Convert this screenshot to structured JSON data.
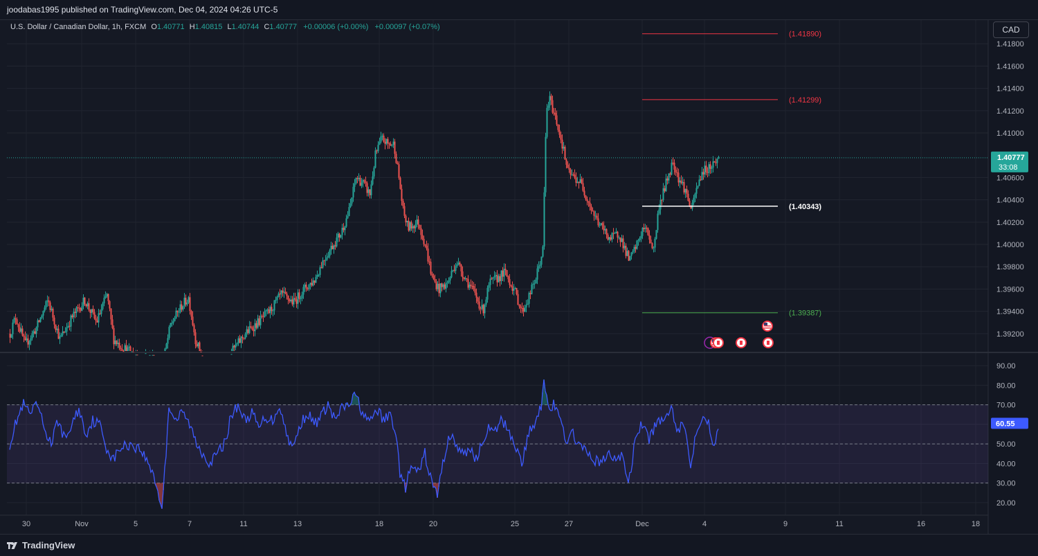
{
  "header": {
    "published": "joodabas1995 published on TradingView.com, Dec 04, 2024 04:26 UTC-5"
  },
  "legend": {
    "symbol": "U.S. Dollar / Canadian Dollar, 1h, FXCM",
    "o_label": "O",
    "o_value": "1.40771",
    "h_label": "H",
    "h_value": "1.40815",
    "l_label": "L",
    "l_value": "1.40744",
    "c_label": "C",
    "c_value": "1.40777",
    "change1": "+0.00006 (+0.00%)",
    "change2": "+0.00097 (+0.07%)"
  },
  "currency_button": "CAD",
  "footer": {
    "brand": "TradingView"
  },
  "colors": {
    "up": "#26a69a",
    "down": "#ef5350",
    "rsi": "#3d5afe",
    "red_level": "#f23645",
    "green_level": "#4caf50",
    "white_level": "#ffffff",
    "background": "#151924"
  },
  "chart_data": [
    {
      "type": "candlestick",
      "symbol": "USDCAD",
      "interval": "1h",
      "ylim": [
        1.3905,
        1.42
      ],
      "y_ticks": [
        "1.41800",
        "1.41600",
        "1.41400",
        "1.41200",
        "1.41000",
        "1.40600",
        "1.40400",
        "1.40200",
        "1.40000",
        "1.39800",
        "1.39600",
        "1.39400",
        "1.39200"
      ],
      "x_ticks": [
        "30",
        "Nov",
        "5",
        "7",
        "11",
        "13",
        "18",
        "20",
        "25",
        "27",
        "Dec",
        "4",
        "9",
        "11",
        "16",
        "18"
      ],
      "anchors": [
        [
          0,
          1.392
        ],
        [
          8,
          1.3935
        ],
        [
          22,
          1.391
        ],
        [
          38,
          1.3925
        ],
        [
          55,
          1.395
        ],
        [
          72,
          1.3915
        ],
        [
          90,
          1.3935
        ],
        [
          108,
          1.395
        ],
        [
          125,
          1.393
        ],
        [
          140,
          1.3955
        ],
        [
          150,
          1.3915
        ],
        [
          162,
          1.3908
        ],
        [
          178,
          1.3902
        ],
        [
          195,
          1.39
        ],
        [
          210,
          1.3898
        ],
        [
          222,
          1.3897
        ],
        [
          232,
          1.3928
        ],
        [
          248,
          1.3945
        ],
        [
          258,
          1.3952
        ],
        [
          268,
          1.3915
        ],
        [
          280,
          1.3895
        ],
        [
          305,
          1.3892
        ],
        [
          322,
          1.3905
        ],
        [
          340,
          1.392
        ],
        [
          358,
          1.393
        ],
        [
          375,
          1.394
        ],
        [
          392,
          1.3955
        ],
        [
          410,
          1.3948
        ],
        [
          425,
          1.396
        ],
        [
          440,
          1.3968
        ],
        [
          452,
          1.3985
        ],
        [
          465,
          1.3998
        ],
        [
          478,
          1.401
        ],
        [
          490,
          1.403
        ],
        [
          500,
          1.406
        ],
        [
          510,
          1.4055
        ],
        [
          520,
          1.4045
        ],
        [
          528,
          1.408
        ],
        [
          537,
          1.4095
        ],
        [
          546,
          1.409
        ],
        [
          555,
          1.409
        ],
        [
          562,
          1.406
        ],
        [
          568,
          1.403
        ],
        [
          575,
          1.4015
        ],
        [
          590,
          1.402
        ],
        [
          600,
          1.4
        ],
        [
          610,
          1.397
        ],
        [
          620,
          1.396
        ],
        [
          632,
          1.3965
        ],
        [
          645,
          1.3985
        ],
        [
          658,
          1.397
        ],
        [
          672,
          1.3955
        ],
        [
          683,
          1.394
        ],
        [
          693,
          1.3965
        ],
        [
          705,
          1.397
        ],
        [
          715,
          1.3975
        ],
        [
          728,
          1.396
        ],
        [
          740,
          1.394
        ],
        [
          748,
          1.395
        ],
        [
          760,
          1.397
        ],
        [
          770,
          1.3995
        ],
        [
          775,
          1.412
        ],
        [
          780,
          1.413
        ],
        [
          790,
          1.411
        ],
        [
          798,
          1.409
        ],
        [
          806,
          1.4065
        ],
        [
          815,
          1.406
        ],
        [
          825,
          1.4055
        ],
        [
          835,
          1.404
        ],
        [
          845,
          1.4025
        ],
        [
          855,
          1.4015
        ],
        [
          868,
          1.4005
        ],
        [
          880,
          1.401
        ],
        [
          895,
          1.3985
        ],
        [
          906,
          1.4
        ],
        [
          915,
          1.4015
        ],
        [
          922,
          1.401
        ],
        [
          930,
          1.3995
        ],
        [
          938,
          1.4035
        ],
        [
          948,
          1.4055
        ],
        [
          958,
          1.4075
        ],
        [
          966,
          1.406
        ],
        [
          975,
          1.405
        ],
        [
          985,
          1.403
        ],
        [
          990,
          1.4045
        ],
        [
          1000,
          1.4065
        ],
        [
          1012,
          1.407
        ],
        [
          1025,
          1.4078
        ]
      ]
    },
    {
      "type": "horizontal_levels",
      "levels": [
        {
          "value": 1.4189,
          "label": "(1.41890)",
          "color": "#f23645"
        },
        {
          "value": 1.41299,
          "label": "(1.41299)",
          "color": "#f23645"
        },
        {
          "value": 1.40343,
          "label": "(1.40343)",
          "color": "#ffffff"
        },
        {
          "value": 1.39387,
          "label": "(1.39387)",
          "color": "#4caf50"
        }
      ],
      "last_price": {
        "value": 1.40777,
        "label": "1.40777",
        "countdown": "33:08"
      }
    },
    {
      "type": "line",
      "name": "RSI",
      "ylim": [
        15,
        95
      ],
      "y_ticks": [
        "90.00",
        "80.00",
        "70.00",
        "60.00",
        "50.00",
        "40.00",
        "30.00",
        "20.00"
      ],
      "bands": [
        30,
        50,
        70
      ],
      "last": {
        "value": 60.55,
        "label": "60.55"
      },
      "anchors": [
        [
          0,
          50
        ],
        [
          10,
          62
        ],
        [
          20,
          70
        ],
        [
          30,
          65
        ],
        [
          40,
          70
        ],
        [
          50,
          58
        ],
        [
          60,
          50
        ],
        [
          70,
          62
        ],
        [
          80,
          52
        ],
        [
          90,
          60
        ],
        [
          100,
          68
        ],
        [
          110,
          55
        ],
        [
          120,
          62
        ],
        [
          130,
          60
        ],
        [
          140,
          48
        ],
        [
          150,
          42
        ],
        [
          160,
          48
        ],
        [
          175,
          50
        ],
        [
          190,
          47
        ],
        [
          200,
          40
        ],
        [
          208,
          35
        ],
        [
          214,
          25
        ],
        [
          220,
          18
        ],
        [
          225,
          40
        ],
        [
          230,
          70
        ],
        [
          240,
          62
        ],
        [
          250,
          66
        ],
        [
          260,
          60
        ],
        [
          270,
          50
        ],
        [
          280,
          45
        ],
        [
          290,
          40
        ],
        [
          300,
          45
        ],
        [
          310,
          50
        ],
        [
          320,
          64
        ],
        [
          330,
          70
        ],
        [
          340,
          62
        ],
        [
          350,
          66
        ],
        [
          360,
          58
        ],
        [
          370,
          64
        ],
        [
          380,
          62
        ],
        [
          390,
          70
        ],
        [
          400,
          55
        ],
        [
          410,
          48
        ],
        [
          420,
          60
        ],
        [
          430,
          66
        ],
        [
          440,
          60
        ],
        [
          450,
          64
        ],
        [
          460,
          70
        ],
        [
          470,
          62
        ],
        [
          480,
          68
        ],
        [
          490,
          70
        ],
        [
          500,
          75
        ],
        [
          510,
          66
        ],
        [
          520,
          60
        ],
        [
          530,
          68
        ],
        [
          540,
          62
        ],
        [
          550,
          65
        ],
        [
          558,
          56
        ],
        [
          565,
          32
        ],
        [
          572,
          28
        ],
        [
          580,
          38
        ],
        [
          590,
          35
        ],
        [
          600,
          45
        ],
        [
          610,
          30
        ],
        [
          618,
          24
        ],
        [
          625,
          38
        ],
        [
          635,
          55
        ],
        [
          645,
          50
        ],
        [
          655,
          44
        ],
        [
          665,
          48
        ],
        [
          675,
          42
        ],
        [
          690,
          58
        ],
        [
          700,
          55
        ],
        [
          710,
          62
        ],
        [
          720,
          58
        ],
        [
          730,
          50
        ],
        [
          740,
          40
        ],
        [
          750,
          55
        ],
        [
          760,
          62
        ],
        [
          768,
          70
        ],
        [
          772,
          85
        ],
        [
          778,
          68
        ],
        [
          786,
          70
        ],
        [
          795,
          62
        ],
        [
          805,
          52
        ],
        [
          815,
          55
        ],
        [
          825,
          48
        ],
        [
          835,
          45
        ],
        [
          845,
          42
        ],
        [
          855,
          40
        ],
        [
          865,
          45
        ],
        [
          875,
          42
        ],
        [
          885,
          44
        ],
        [
          895,
          30
        ],
        [
          905,
          55
        ],
        [
          915,
          60
        ],
        [
          925,
          52
        ],
        [
          935,
          62
        ],
        [
          945,
          60
        ],
        [
          955,
          70
        ],
        [
          965,
          58
        ],
        [
          975,
          60
        ],
        [
          985,
          38
        ],
        [
          990,
          55
        ],
        [
          1000,
          64
        ],
        [
          1010,
          60
        ],
        [
          1018,
          50
        ],
        [
          1025,
          61
        ]
      ]
    }
  ]
}
